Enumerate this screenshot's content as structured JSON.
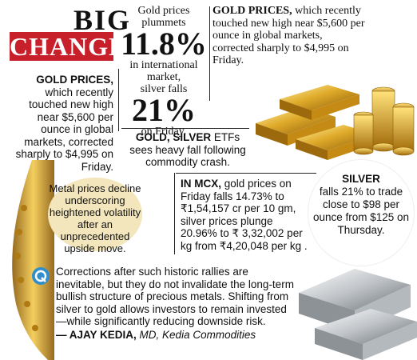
{
  "title": {
    "word1": "BIG",
    "word2": "CHANGE"
  },
  "headline": {
    "line1": "Gold prices",
    "line2": "plummets",
    "pct_gold": "11.8%",
    "line3": "in international",
    "line4": "market,",
    "line5": "silver falls",
    "pct_silver": "21%",
    "line6": "on Friday."
  },
  "top_right": {
    "lead": "GOLD PRICES,",
    "text": " which recently touched new high near $5,600 per ounce in global markets, corrected sharply to $4,995 on Friday."
  },
  "left_block": {
    "lead": "GOLD PRICES,",
    "text": " which recently touched new high near $5,600 per ounce in global markets, corrected sharply to $4,995 on Friday."
  },
  "etf_block": {
    "lead": "GOLD, SILVER",
    "text": " ETFs sees heavy fall following commodity crash."
  },
  "bubble": {
    "text": "Metal prices decline underscoring heightened volatility after an unprecedented upside move."
  },
  "mcx": {
    "lead": "IN MCX,",
    "text": " gold prices on Friday falls 14.73% to ₹1,54,157 cr per 10 gm, silver prices plunge 20.96% to ₹ 3,32,002 per kg from ₹4,20,048 per kg ."
  },
  "silver": {
    "lead": "SILVER",
    "text": "falls 21% to trade close to $98 per ounce from $125 on Thursday."
  },
  "quote": {
    "text": "Corrections after such historic rallies are inevitable, but they do not invalidate the long-term bullish structure of precious metals. Shifting from silver to gold allows investors to remain invested—while significantly reducing downside risk.",
    "author": "— AJAY KEDIA,",
    "role": " MD, Kedia Commodities"
  },
  "colors": {
    "accent_red": "#c8202a",
    "gold": "#d9a520",
    "bubble_bg": "#f3e6bc",
    "quote_icon": "#2f8ecb"
  }
}
